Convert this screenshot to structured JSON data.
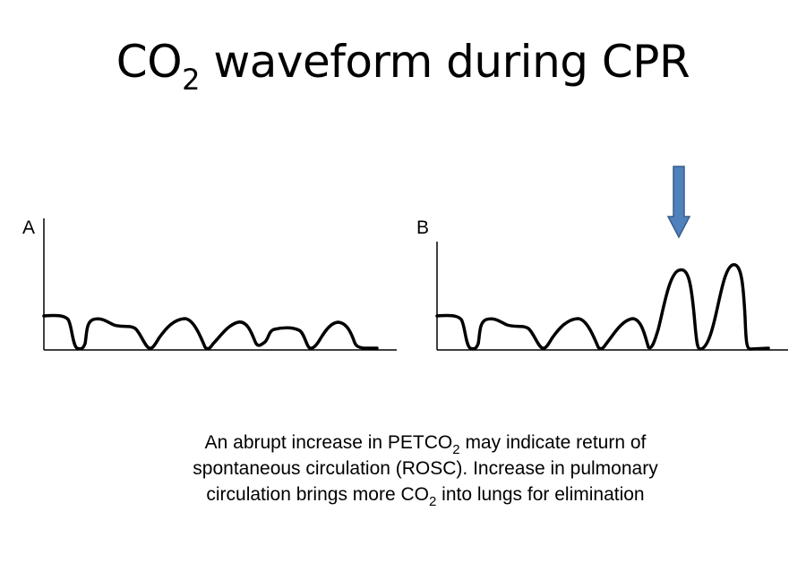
{
  "title": {
    "prefix": "CO",
    "sub": "2",
    "suffix": " waveform during CPR"
  },
  "panels": [
    {
      "label": "A"
    },
    {
      "label": "B"
    }
  ],
  "caption": {
    "line1_before": "An abrupt increase in PETCO",
    "line1_sub": "2",
    "line1_after": " may indicate return of",
    "line2": "spontaneous  circulation (ROSC). Increase in pulmonary",
    "line3_before": "circulation brings more CO",
    "line3_sub": "2",
    "line3_after": "  into lungs for elimination"
  },
  "colors": {
    "waveform": "#000000",
    "arrow_fill": "#4F81BD",
    "arrow_stroke": "#385D8A"
  }
}
